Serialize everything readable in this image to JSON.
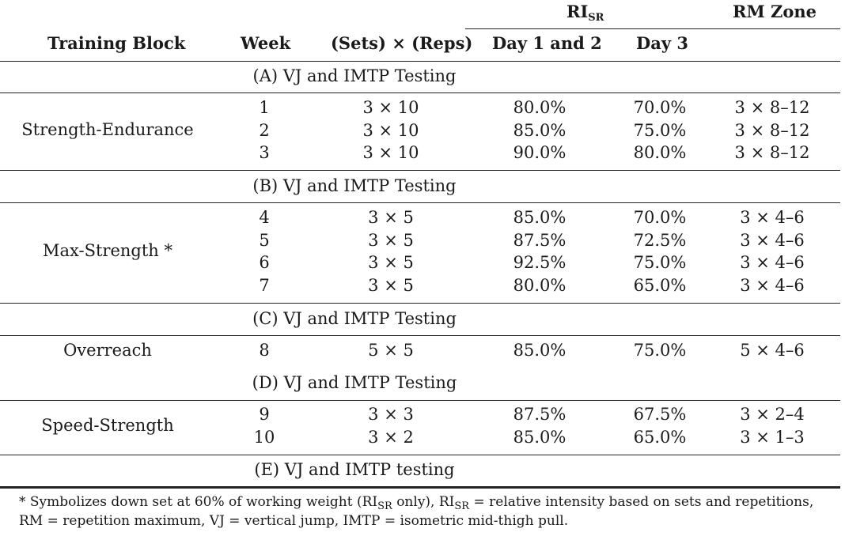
{
  "headers": {
    "training_block": "Training Block",
    "week": "Week",
    "sets_reps": "(Sets) × (Reps)",
    "ri_main": "RI",
    "ri_sub": "SR",
    "day12": "Day 1 and 2",
    "day3": "Day 3",
    "rm_zone": "RM Zone"
  },
  "testing": [
    "(A) VJ and IMTP Testing",
    "(B) VJ and IMTP Testing",
    "(C) VJ and IMTP Testing",
    "(D) VJ and IMTP Testing",
    "(E) VJ and IMTP testing"
  ],
  "blocks": [
    {
      "name": "Strength-Endurance",
      "rows": [
        {
          "week": "1",
          "sets": "3 × 10",
          "day12": "80.0%",
          "day3": "70.0%",
          "rm": "3 × 8–12"
        },
        {
          "week": "2",
          "sets": "3 × 10",
          "day12": "85.0%",
          "day3": "75.0%",
          "rm": "3 × 8–12"
        },
        {
          "week": "3",
          "sets": "3 × 10",
          "day12": "90.0%",
          "day3": "80.0%",
          "rm": "3 × 8–12"
        }
      ]
    },
    {
      "name": "Max-Strength *",
      "rows": [
        {
          "week": "4",
          "sets": "3 × 5",
          "day12": "85.0%",
          "day3": "70.0%",
          "rm": "3 × 4–6"
        },
        {
          "week": "5",
          "sets": "3 × 5",
          "day12": "87.5%",
          "day3": "72.5%",
          "rm": "3 × 4–6"
        },
        {
          "week": "6",
          "sets": "3 × 5",
          "day12": "92.5%",
          "day3": "75.0%",
          "rm": "3 × 4–6"
        },
        {
          "week": "7",
          "sets": "3 × 5",
          "day12": "80.0%",
          "day3": "65.0%",
          "rm": "3 × 4–6"
        }
      ]
    },
    {
      "name": "Overreach",
      "rows": [
        {
          "week": "8",
          "sets": "5 × 5",
          "day12": "85.0%",
          "day3": "75.0%",
          "rm": "5 × 4–6"
        }
      ]
    },
    {
      "name": "Speed-Strength",
      "rows": [
        {
          "week": "9",
          "sets": "3 × 3",
          "day12": "87.5%",
          "day3": "67.5%",
          "rm": "3 × 2–4"
        },
        {
          "week": "10",
          "sets": "3 × 2",
          "day12": "85.0%",
          "day3": "65.0%",
          "rm": "3 × 1–3"
        }
      ]
    }
  ],
  "footnote": {
    "part1": "* Symbolizes down set at 60% of working weight (RI",
    "sub1": "SR",
    "part2": " only), RI",
    "sub2": "SR",
    "part3": " = relative intensity based on sets and repetitions,",
    "line2": "RM = repetition maximum, VJ = vertical jump, IMTP = isometric mid-thigh pull."
  }
}
